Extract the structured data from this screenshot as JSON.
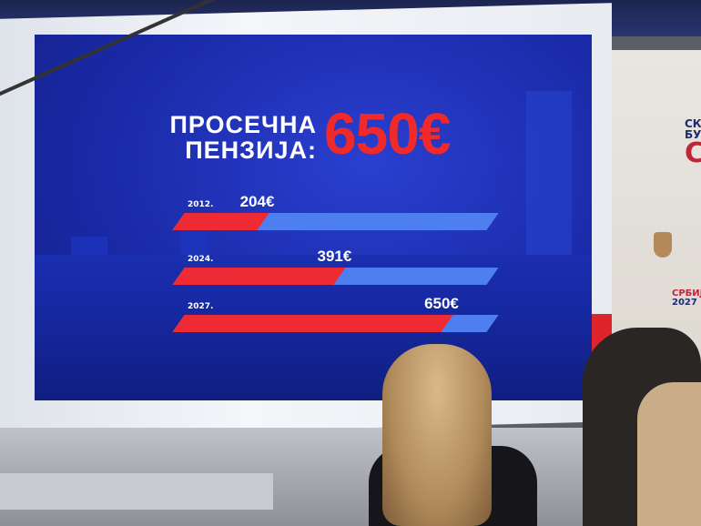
{
  "slide": {
    "title_line1": "ПРОСЕЧНА",
    "title_line2": "ПЕНЗИЈА:",
    "headline_value": "650€"
  },
  "chart_data": {
    "type": "bar",
    "orientation": "horizontal",
    "title": "ПРОСЕЧНА ПЕНЗИЈА: 650€",
    "categories": [
      "2012.",
      "2024.",
      "2027."
    ],
    "values": [
      204,
      391,
      650
    ],
    "value_labels": [
      "204€",
      "391€",
      "650€"
    ],
    "unit": "€",
    "grid": false,
    "colors": {
      "fill": "#ee2a34",
      "track": "#4e7ff0",
      "background": "#1a2aa8",
      "headline": "#f02a2a"
    }
  },
  "background_logos": {
    "top": [
      "СК",
      "БУ",
      "С"
    ],
    "bottom": [
      "СРБИЈА",
      "2027"
    ]
  }
}
